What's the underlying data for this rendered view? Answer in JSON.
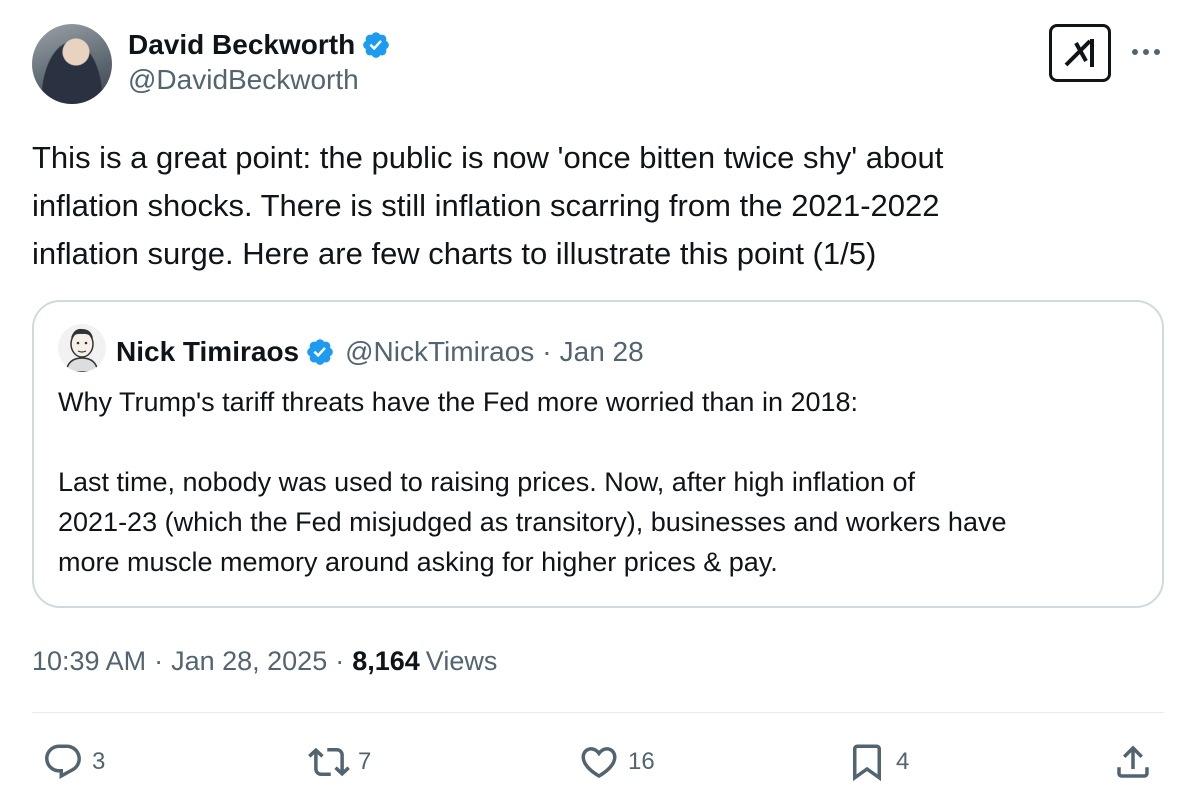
{
  "author": {
    "name": "David Beckworth",
    "handle": "@DavidBeckworth"
  },
  "tweet": {
    "lines": [
      "This is a great point: the public is now 'once bitten twice shy' about",
      "inflation shocks. There is still inflation scarring from the 2021-2022",
      "inflation surge. Here are few charts to illustrate this point (1/5)"
    ]
  },
  "quote": {
    "name": "Nick Timiraos",
    "handle": "@NickTimiraos",
    "separator": "·",
    "date": "Jan 28",
    "lines": [
      "Why Trump's tariff threats have the Fed more worried than in 2018:",
      "",
      "Last time, nobody was used to raising prices. Now, after high inflation of",
      "2021-23 (which the Fed misjudged as transitory), businesses and workers have",
      "more muscle memory around asking for higher prices & pay."
    ]
  },
  "meta": {
    "time": "10:39 AM",
    "separator": "·",
    "date": "Jan 28, 2025",
    "views_count": "8,164",
    "views_label": "Views"
  },
  "actions": {
    "replies": "3",
    "reposts": "7",
    "likes": "16",
    "bookmarks": "4"
  },
  "colors": {
    "verified": "#1d9bf0",
    "secondary_text": "#536471",
    "border": "#cfd9de"
  },
  "icons": [
    "verified-badge-icon",
    "grok-icon",
    "more-icon",
    "reply-icon",
    "retweet-icon",
    "like-icon",
    "bookmark-icon",
    "share-icon"
  ]
}
